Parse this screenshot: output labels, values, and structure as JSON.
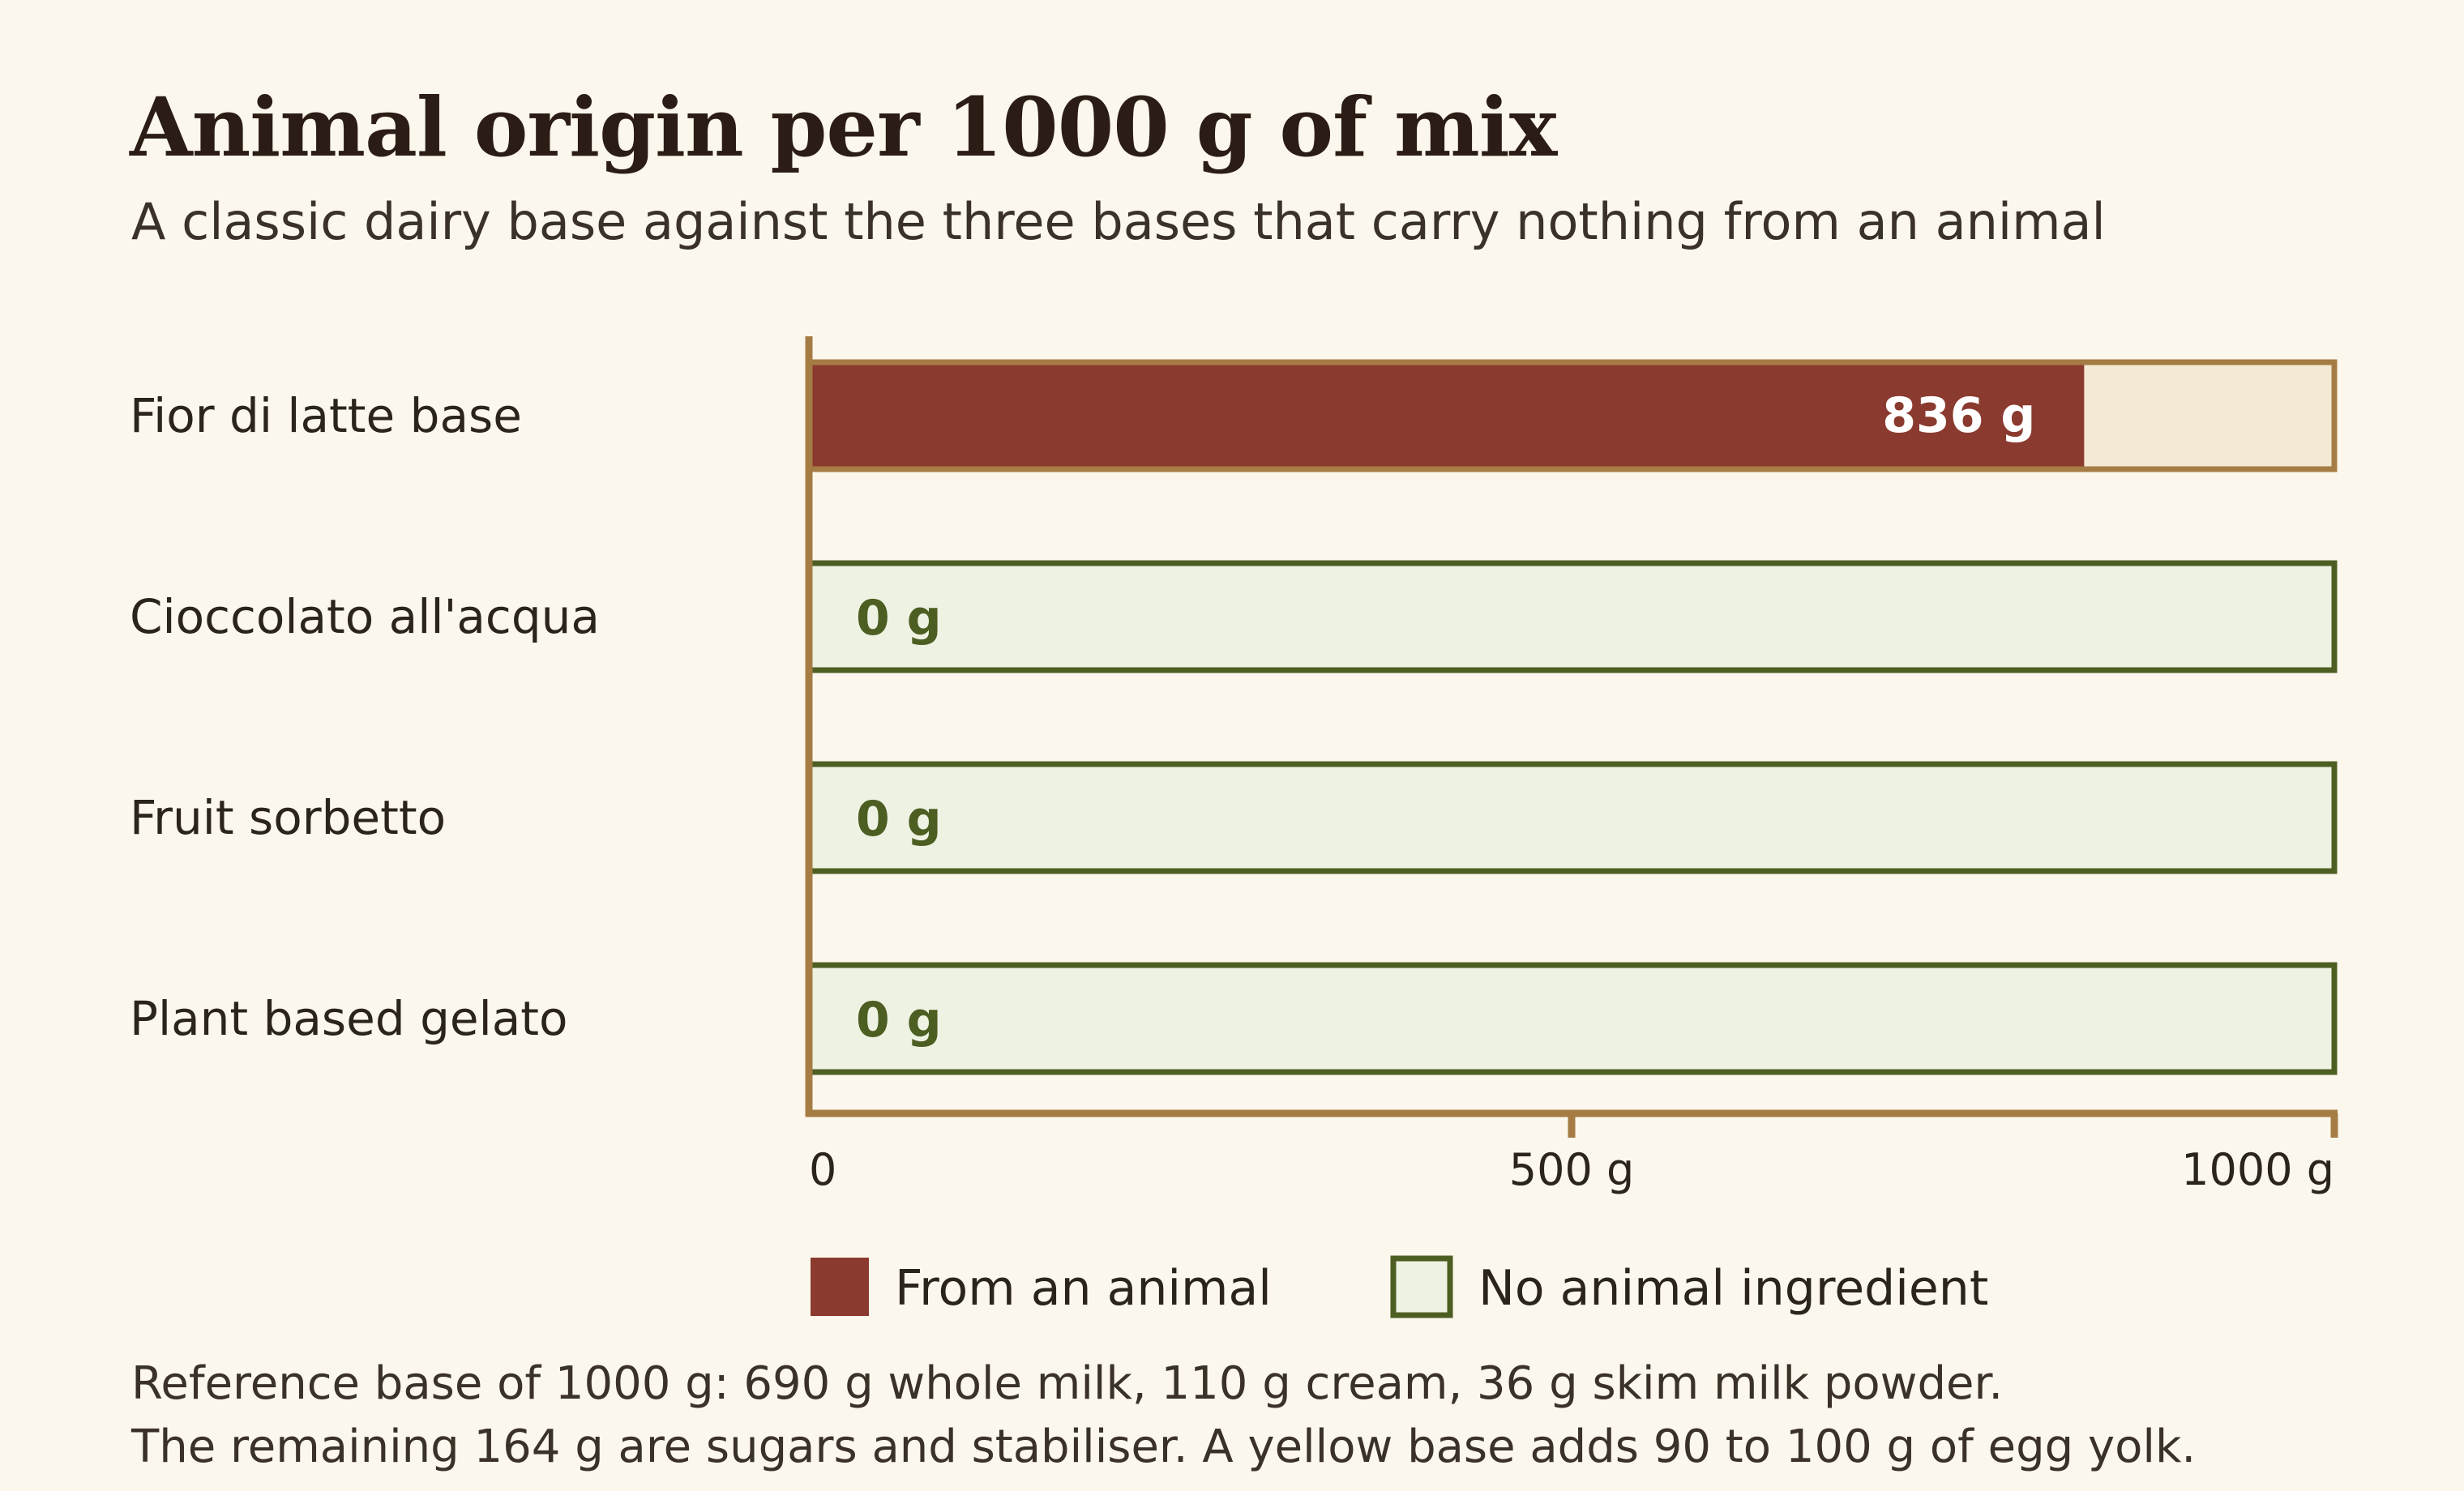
{
  "chart_data": {
    "type": "bar",
    "orientation": "horizontal",
    "title": "Animal origin per 1000 g of mix",
    "subtitle": "A classic dairy base against the three bases that carry nothing from an animal",
    "unit": "g",
    "categories": [
      "Fior di latte base",
      "Cioccolato all'acqua",
      "Fruit sorbetto",
      "Plant based gelato"
    ],
    "series": [
      {
        "name": "From an animal",
        "values": [
          836,
          0,
          0,
          0
        ]
      }
    ],
    "value_labels": [
      "836 g",
      "0 g",
      "0 g",
      "0 g"
    ],
    "xlim": [
      0,
      1000
    ],
    "x_ticks": [
      {
        "value": 0,
        "label": "0"
      },
      {
        "value": 500,
        "label": "500 g"
      },
      {
        "value": 1000,
        "label": "1000 g"
      }
    ],
    "legend": [
      {
        "name": "From an animal",
        "swatch": "filled"
      },
      {
        "name": "No animal ingredient",
        "swatch": "outlined"
      }
    ],
    "legend_position": "bottom",
    "grid": false,
    "colors": {
      "animal": "#8b3a2f",
      "dairy_remainder": "#f4ead4",
      "dairy_outline": "#a57c44",
      "no_animal_fill": "#eef2e2",
      "no_animal_outline": "#4d5e22",
      "axis": "#a57c44",
      "background": "#fcf7ec"
    }
  },
  "notes": [
    "Reference base of 1000 g: 690 g whole milk, 110 g cream, 36 g skim milk powder.",
    "The remaining 164 g are sugars and stabiliser. A yellow base adds 90 to 100 g of egg yolk."
  ]
}
